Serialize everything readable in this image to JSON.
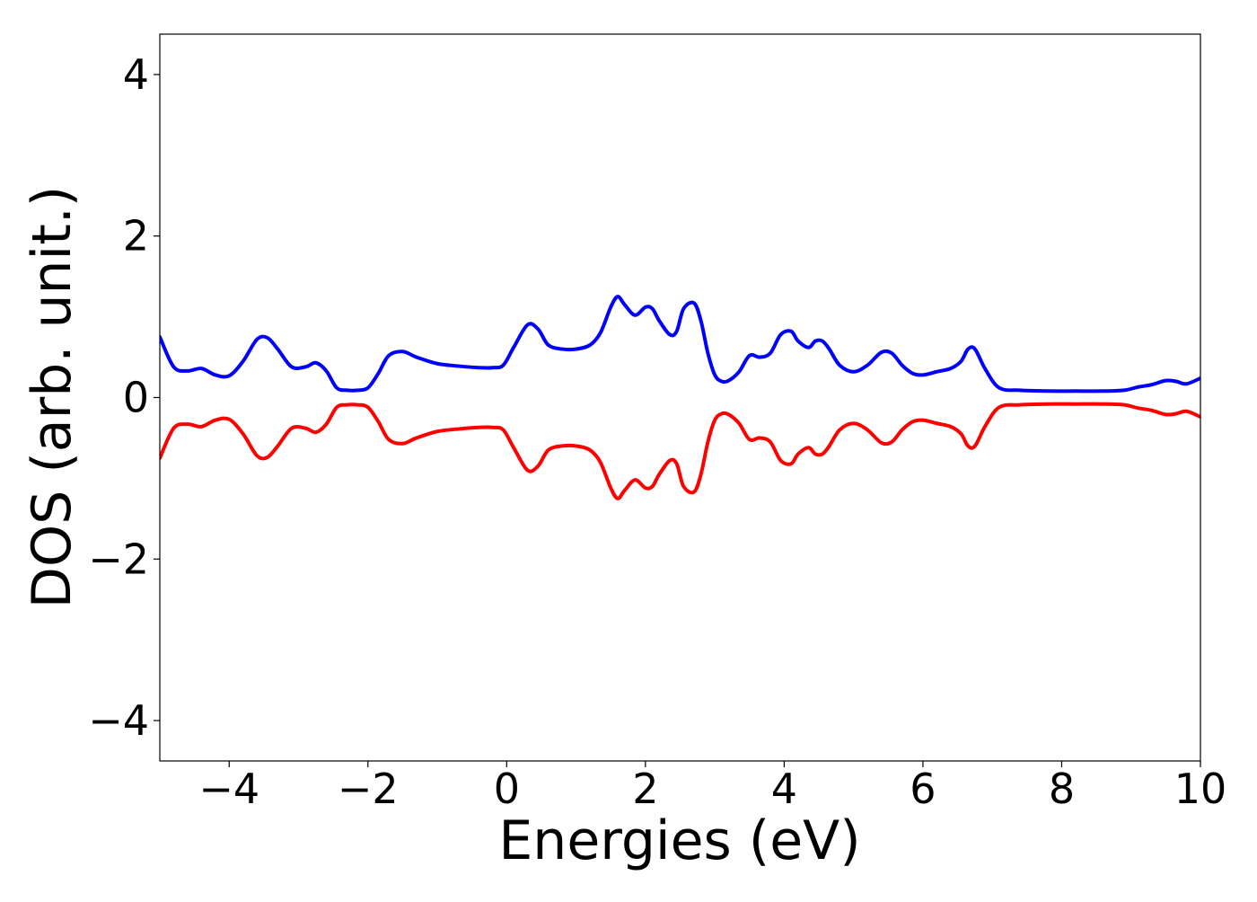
{
  "chart_data": {
    "type": "line",
    "title": "",
    "xlabel": "Energies (eV)",
    "ylabel": "DOS (arb. unit.)",
    "xlim": [
      -5,
      10
    ],
    "ylim": [
      -4.5,
      4.5
    ],
    "x_ticks": [
      {
        "value": -4,
        "label": "−4"
      },
      {
        "value": -2,
        "label": "−2"
      },
      {
        "value": 0,
        "label": "0"
      },
      {
        "value": 2,
        "label": "2"
      },
      {
        "value": 4,
        "label": "4"
      },
      {
        "value": 6,
        "label": "6"
      },
      {
        "value": 8,
        "label": "8"
      },
      {
        "value": 10,
        "label": "10"
      }
    ],
    "y_ticks": [
      {
        "value": 4,
        "label": "4"
      },
      {
        "value": 2,
        "label": "2"
      },
      {
        "value": 0,
        "label": "0"
      },
      {
        "value": -2,
        "label": "−2"
      },
      {
        "value": -4,
        "label": "−4"
      }
    ],
    "grid": false,
    "legend": "none",
    "x": [
      -5.0,
      -4.8,
      -4.6,
      -4.4,
      -4.2,
      -4.0,
      -3.8,
      -3.6,
      -3.45,
      -3.3,
      -3.1,
      -2.9,
      -2.75,
      -2.6,
      -2.45,
      -2.3,
      -2.15,
      -2.0,
      -1.85,
      -1.7,
      -1.5,
      -1.3,
      -1.0,
      -0.7,
      -0.4,
      -0.2,
      -0.05,
      0.1,
      0.3,
      0.45,
      0.6,
      0.8,
      1.0,
      1.2,
      1.35,
      1.5,
      1.6,
      1.7,
      1.85,
      2.0,
      2.1,
      2.2,
      2.35,
      2.45,
      2.55,
      2.7,
      2.8,
      2.9,
      3.0,
      3.1,
      3.2,
      3.35,
      3.5,
      3.65,
      3.8,
      3.95,
      4.1,
      4.2,
      4.35,
      4.45,
      4.55,
      4.65,
      4.8,
      5.0,
      5.2,
      5.4,
      5.55,
      5.7,
      5.85,
      6.0,
      6.2,
      6.4,
      6.55,
      6.65,
      6.75,
      6.9,
      7.1,
      7.4,
      7.8,
      8.2,
      8.6,
      8.9,
      9.1,
      9.3,
      9.5,
      9.65,
      9.8,
      10.0
    ],
    "series": [
      {
        "color": "#0000ff",
        "values": [
          0.75,
          0.38,
          0.33,
          0.36,
          0.28,
          0.27,
          0.45,
          0.72,
          0.74,
          0.6,
          0.38,
          0.38,
          0.43,
          0.33,
          0.12,
          0.09,
          0.09,
          0.12,
          0.3,
          0.52,
          0.57,
          0.5,
          0.42,
          0.39,
          0.37,
          0.37,
          0.4,
          0.62,
          0.9,
          0.85,
          0.65,
          0.6,
          0.6,
          0.65,
          0.8,
          1.12,
          1.25,
          1.15,
          1.02,
          1.12,
          1.1,
          0.95,
          0.78,
          0.82,
          1.1,
          1.17,
          0.95,
          0.55,
          0.28,
          0.2,
          0.21,
          0.32,
          0.52,
          0.5,
          0.55,
          0.78,
          0.82,
          0.7,
          0.62,
          0.7,
          0.7,
          0.6,
          0.4,
          0.32,
          0.4,
          0.56,
          0.55,
          0.4,
          0.3,
          0.28,
          0.32,
          0.36,
          0.45,
          0.6,
          0.6,
          0.35,
          0.12,
          0.09,
          0.08,
          0.08,
          0.08,
          0.09,
          0.13,
          0.16,
          0.21,
          0.2,
          0.17,
          0.24
        ]
      },
      {
        "color": "#ff0000",
        "values": [
          -0.75,
          -0.38,
          -0.33,
          -0.36,
          -0.28,
          -0.27,
          -0.45,
          -0.72,
          -0.74,
          -0.6,
          -0.38,
          -0.38,
          -0.43,
          -0.33,
          -0.12,
          -0.09,
          -0.09,
          -0.12,
          -0.3,
          -0.52,
          -0.57,
          -0.5,
          -0.42,
          -0.39,
          -0.37,
          -0.37,
          -0.4,
          -0.62,
          -0.9,
          -0.85,
          -0.65,
          -0.6,
          -0.6,
          -0.65,
          -0.8,
          -1.12,
          -1.25,
          -1.15,
          -1.02,
          -1.12,
          -1.1,
          -0.95,
          -0.78,
          -0.82,
          -1.1,
          -1.17,
          -0.95,
          -0.55,
          -0.28,
          -0.2,
          -0.21,
          -0.32,
          -0.52,
          -0.5,
          -0.55,
          -0.78,
          -0.82,
          -0.7,
          -0.62,
          -0.7,
          -0.7,
          -0.6,
          -0.4,
          -0.32,
          -0.4,
          -0.56,
          -0.55,
          -0.4,
          -0.3,
          -0.28,
          -0.32,
          -0.36,
          -0.45,
          -0.6,
          -0.6,
          -0.35,
          -0.12,
          -0.09,
          -0.08,
          -0.08,
          -0.08,
          -0.09,
          -0.13,
          -0.16,
          -0.21,
          -0.2,
          -0.17,
          -0.24
        ]
      }
    ]
  }
}
